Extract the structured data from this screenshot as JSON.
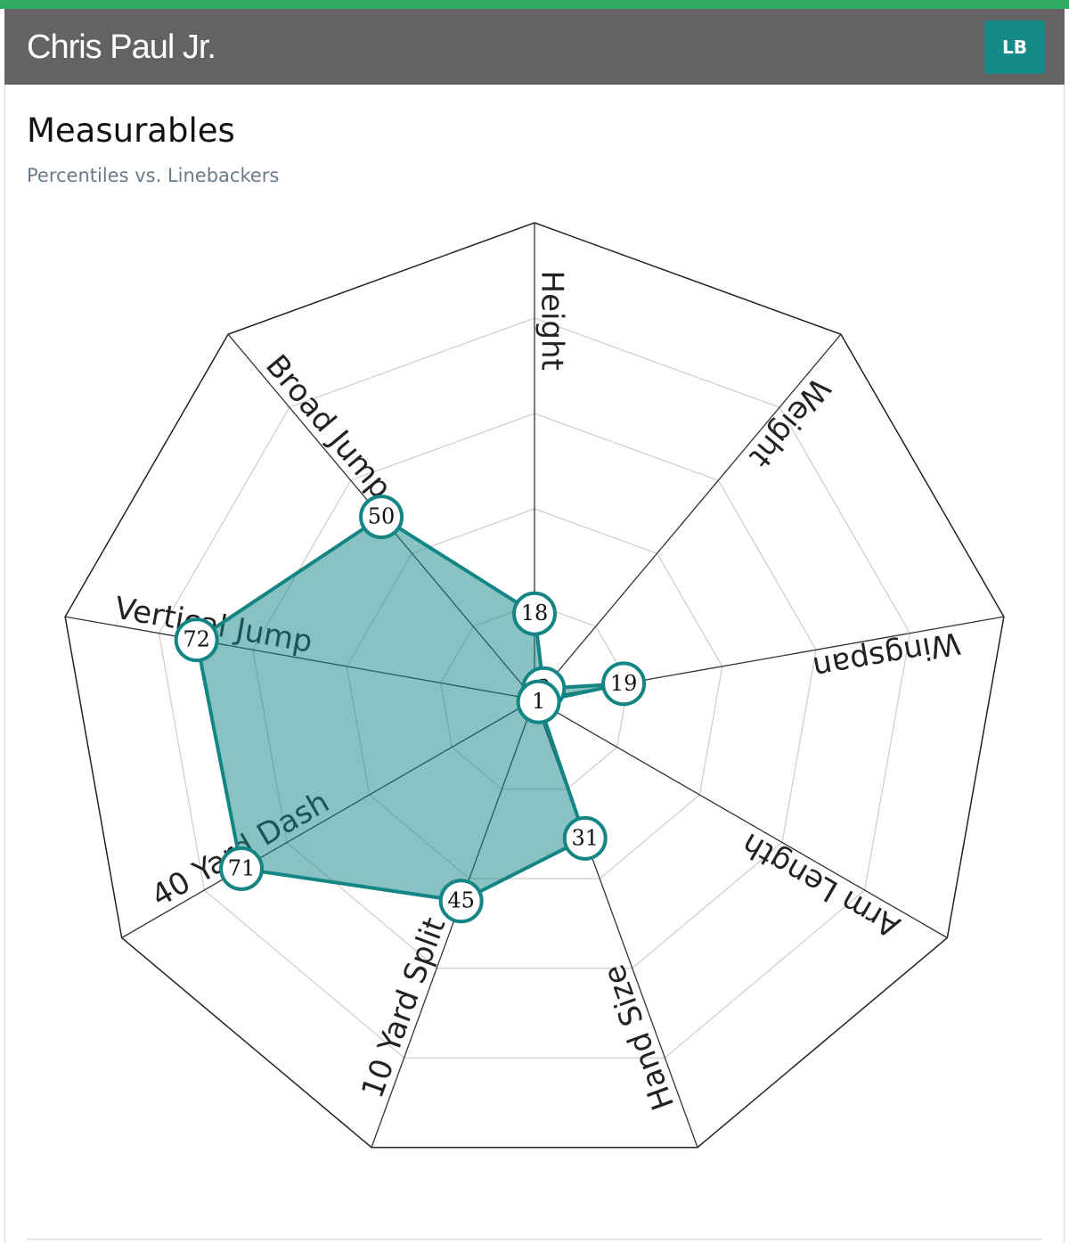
{
  "header": {
    "title": "Chris Paul Jr.",
    "badge": "LB"
  },
  "chart_data": {
    "type": "radar",
    "title": "Measurables",
    "subtitle": "Percentiles vs. Linebackers",
    "categories": [
      "Height",
      "Weight",
      "Wingspan",
      "Arm Length",
      "Hand Size",
      "10 Yard Split",
      "40 Yard Dash",
      "Vertical Jump",
      "Broad Jump"
    ],
    "values": [
      18,
      3,
      19,
      1,
      31,
      45,
      71,
      72,
      50
    ],
    "color": "#138585",
    "rlim": [
      0,
      100
    ],
    "rticks": [
      20,
      40,
      60,
      80,
      100
    ],
    "grid": true
  }
}
